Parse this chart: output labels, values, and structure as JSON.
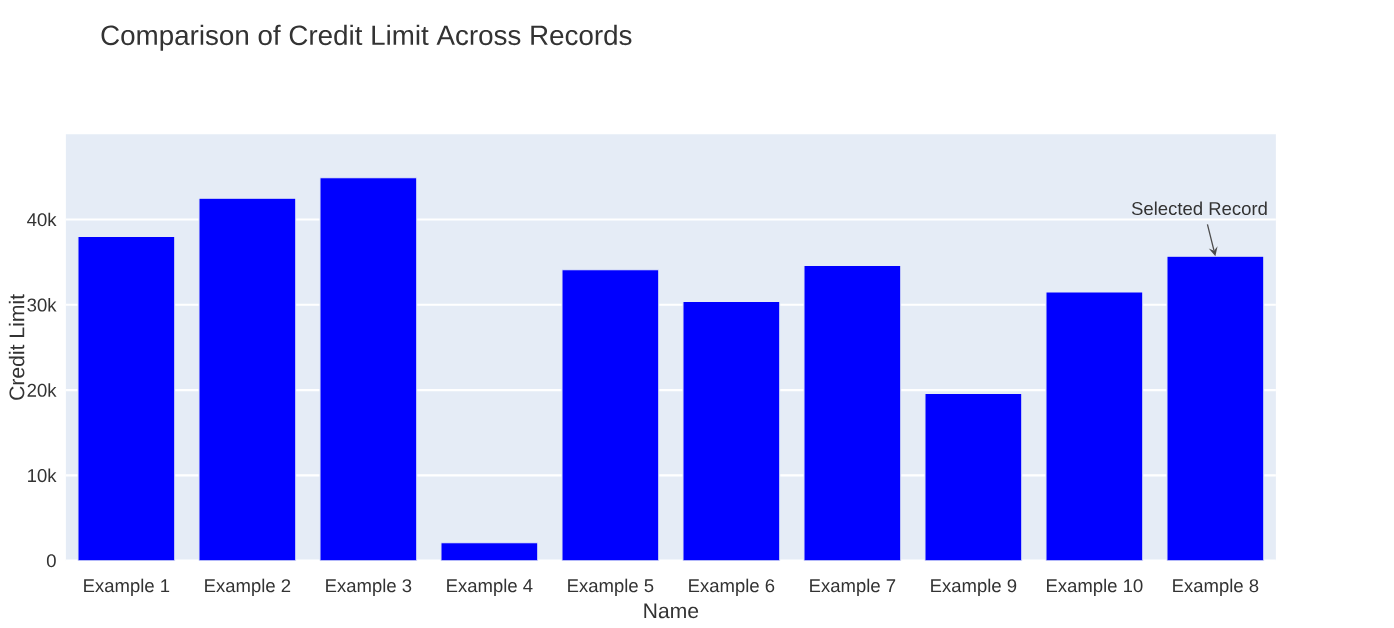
{
  "chart_data": {
    "type": "bar",
    "title": "Comparison of Credit Limit Across Records",
    "xlabel": "Name",
    "ylabel": "Credit Limit",
    "categories": [
      "Example 1",
      "Example 2",
      "Example 3",
      "Example 4",
      "Example 5",
      "Example 6",
      "Example 7",
      "Example 9",
      "Example 10",
      "Example 8"
    ],
    "values": [
      38000,
      42500,
      44900,
      2100,
      34100,
      30400,
      34600,
      19600,
      31500,
      35700
    ],
    "color": "#0000ff",
    "ylim": [
      0,
      50000
    ],
    "yticks": [
      0,
      {
        "value": 10000,
        "label": "10k"
      },
      {
        "value": 20000,
        "label": "20k"
      },
      {
        "value": 30000,
        "label": "30k"
      },
      {
        "value": 40000,
        "label": "40k"
      }
    ],
    "grid": "y",
    "annotations": [
      {
        "text": "Selected Record",
        "x": "Example 8",
        "y": 35700
      }
    ]
  }
}
